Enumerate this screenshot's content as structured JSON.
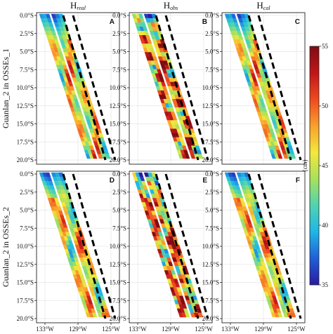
{
  "figure": {
    "column_titles": [
      {
        "main": "H",
        "sub": "real"
      },
      {
        "main": "H",
        "sub": "obs"
      },
      {
        "main": "H",
        "sub": "cal"
      }
    ],
    "row_labels": [
      "Guanlan_2 in OSSEs_1",
      "Guanlan_2 in OSSEs_2"
    ],
    "panel_letters": [
      "A",
      "B",
      "C",
      "D",
      "E",
      "F"
    ],
    "lat_ticks": [
      "0.0°S",
      "2.5°S",
      "5.0°S",
      "7.5°S",
      "10.0°S",
      "12.5°S",
      "15.0°S",
      "17.5°S",
      "20.0°S"
    ],
    "lon_ticks": [
      "133°W",
      "129°W",
      "125°W"
    ],
    "colorbar": {
      "unit": "(cm)",
      "ticks": [
        "55",
        "50",
        "45",
        "40",
        "35"
      ],
      "range": [
        35,
        55
      ],
      "colors": [
        "#2a1ba0",
        "#1f5fd8",
        "#1fb6e6",
        "#4fd4b0",
        "#a8e05c",
        "#f4e83a",
        "#f9a02c",
        "#ef4a1e",
        "#c0161a",
        "#7f0c12"
      ]
    }
  },
  "chart_data": [
    {
      "type": "heatmap",
      "panel": "A",
      "title": "H_real",
      "ylabel": "Guanlan_2 in OSSEs_1",
      "colorbar_range_cm": [
        35,
        55
      ],
      "lat_range": [
        "0.0°S",
        "20.0°S"
      ],
      "lon_ticks": [
        "133°W",
        "129°W",
        "125°W"
      ]
    },
    {
      "type": "heatmap",
      "panel": "B",
      "title": "H_obs",
      "colorbar_range_cm": [
        35,
        55
      ]
    },
    {
      "type": "heatmap",
      "panel": "C",
      "title": "H_cal",
      "colorbar_range_cm": [
        35,
        55
      ]
    },
    {
      "type": "heatmap",
      "panel": "D",
      "ylabel": "Guanlan_2 in OSSEs_2",
      "colorbar_range_cm": [
        35,
        55
      ]
    },
    {
      "type": "heatmap",
      "panel": "E",
      "colorbar_range_cm": [
        35,
        55
      ]
    },
    {
      "type": "heatmap",
      "panel": "F",
      "colorbar_range_cm": [
        35,
        55
      ]
    }
  ]
}
